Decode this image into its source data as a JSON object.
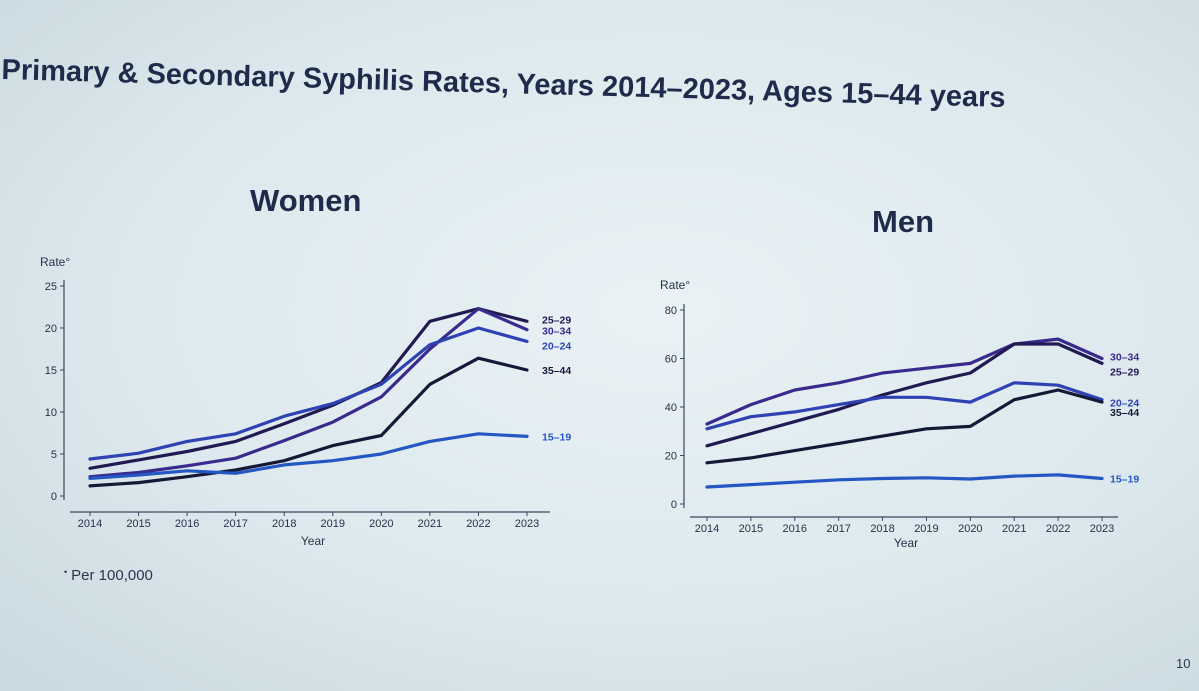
{
  "slide": {
    "title": "Primary & Secondary Syphilis Rates, Years 2014–2023, Ages 15–44 years",
    "footnote_marker": "•",
    "footnote": "Per 100,000",
    "page_number": "10"
  },
  "colors": {
    "15–19": "#2456c4",
    "20–24": "#2f42b3",
    "25–29": "#211a52",
    "30–34": "#3a2a8e",
    "35–44": "#141a36"
  },
  "chart_data": [
    {
      "id": "women",
      "type": "line",
      "title": "Women",
      "ylabel": "Rate°",
      "xlabel": "Year",
      "ylim": [
        0,
        25
      ],
      "yticks": [
        0,
        5,
        10,
        15,
        20,
        25
      ],
      "x": [
        "2014",
        "2015",
        "2016",
        "2017",
        "2018",
        "2019",
        "2020",
        "2021",
        "2022",
        "2023"
      ],
      "series": [
        {
          "name": "25–29",
          "label": "25–29",
          "values": [
            3.3,
            4.3,
            5.3,
            6.5,
            8.6,
            10.8,
            13.5,
            20.8,
            22.3,
            20.8
          ]
        },
        {
          "name": "30–34",
          "label": "30–34",
          "values": [
            2.3,
            2.8,
            3.6,
            4.5,
            6.6,
            8.8,
            11.8,
            17.5,
            22.3,
            19.8
          ]
        },
        {
          "name": "20–24",
          "label": "20–24",
          "values": [
            4.4,
            5.1,
            6.5,
            7.4,
            9.5,
            11.0,
            13.3,
            18.0,
            20.0,
            18.4
          ]
        },
        {
          "name": "35–44",
          "label": "35–44",
          "values": [
            1.2,
            1.6,
            2.3,
            3.1,
            4.2,
            6.0,
            7.2,
            13.3,
            16.4,
            15.0
          ]
        },
        {
          "name": "15–19",
          "label": "15–19",
          "values": [
            2.1,
            2.5,
            3.0,
            2.7,
            3.7,
            4.2,
            5.0,
            6.5,
            7.4,
            7.1
          ]
        }
      ]
    },
    {
      "id": "men",
      "type": "line",
      "title": "Men",
      "ylabel": "Rate°",
      "xlabel": "Year",
      "ylim": [
        0,
        80
      ],
      "yticks": [
        0,
        20,
        40,
        60,
        80
      ],
      "x": [
        "2014",
        "2015",
        "2016",
        "2017",
        "2018",
        "2019",
        "2020",
        "2021",
        "2022",
        "2023"
      ],
      "series": [
        {
          "name": "30–34",
          "label": "30–34",
          "values": [
            33,
            41,
            47,
            50,
            54,
            56,
            58,
            66,
            68,
            60
          ]
        },
        {
          "name": "25–29",
          "label": "25–29",
          "values": [
            24,
            29,
            34,
            39,
            45,
            50,
            54,
            66,
            66,
            58
          ]
        },
        {
          "name": "20–24",
          "label": "20–24",
          "values": [
            31,
            36,
            38,
            41,
            44,
            44,
            42,
            50,
            49,
            43
          ]
        },
        {
          "name": "35–44",
          "label": "35–44",
          "values": [
            17,
            19,
            22,
            25,
            28,
            31,
            32,
            43,
            47,
            42
          ]
        },
        {
          "name": "15–19",
          "label": "15–19",
          "values": [
            7,
            8,
            9,
            10,
            10.5,
            10.8,
            10.3,
            11.5,
            12,
            10.5
          ]
        }
      ]
    }
  ]
}
